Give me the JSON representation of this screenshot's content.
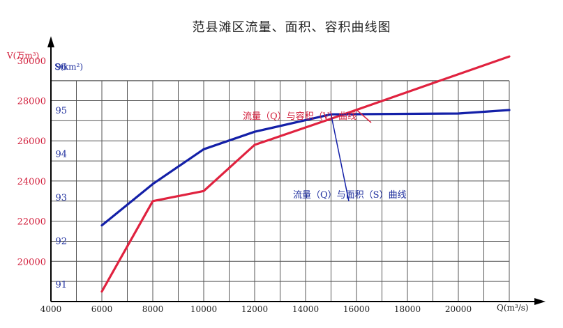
{
  "chart_data": {
    "type": "line",
    "title": "范县滩区流量、面积、容积曲线图",
    "xlabel": "Q(m³/s)",
    "y_left_label": "V(万m³)",
    "y_right_label": "S(km²)",
    "xlim": [
      4000,
      22000
    ],
    "x_ticks": [
      "4000",
      "6000",
      "8000",
      "10000",
      "12000",
      "14000",
      "16000",
      "18000",
      "20000"
    ],
    "v_ylim": [
      18000,
      31000
    ],
    "v_ticks": [
      "20000",
      "22000",
      "24000",
      "26000",
      "28000",
      "30000"
    ],
    "s_ylim": [
      90.6,
      96.6
    ],
    "s_ticks": [
      "91",
      "92",
      "93",
      "94",
      "95",
      "96"
    ],
    "grid": true,
    "series": [
      {
        "name": "流量（Q）与容积（V）曲线",
        "axis": "V",
        "color": "#e0223f",
        "x": [
          6000,
          8000,
          10000,
          12000,
          15000,
          22000
        ],
        "values": [
          18500,
          23000,
          23500,
          25800,
          27100,
          30200
        ]
      },
      {
        "name": "流量（Q）与面积（S）曲线",
        "axis": "S",
        "color": "#1420a8",
        "x": [
          6000,
          8000,
          10000,
          12000,
          15000,
          20000,
          22000
        ],
        "values": [
          92.35,
          93.3,
          94.1,
          94.5,
          94.9,
          94.92,
          95.0
        ]
      }
    ],
    "annotations": [
      {
        "text": "流量（Q）与容积（V）曲线",
        "series": 0
      },
      {
        "text": "流量（Q）与面积（S）曲线",
        "series": 1
      }
    ]
  }
}
